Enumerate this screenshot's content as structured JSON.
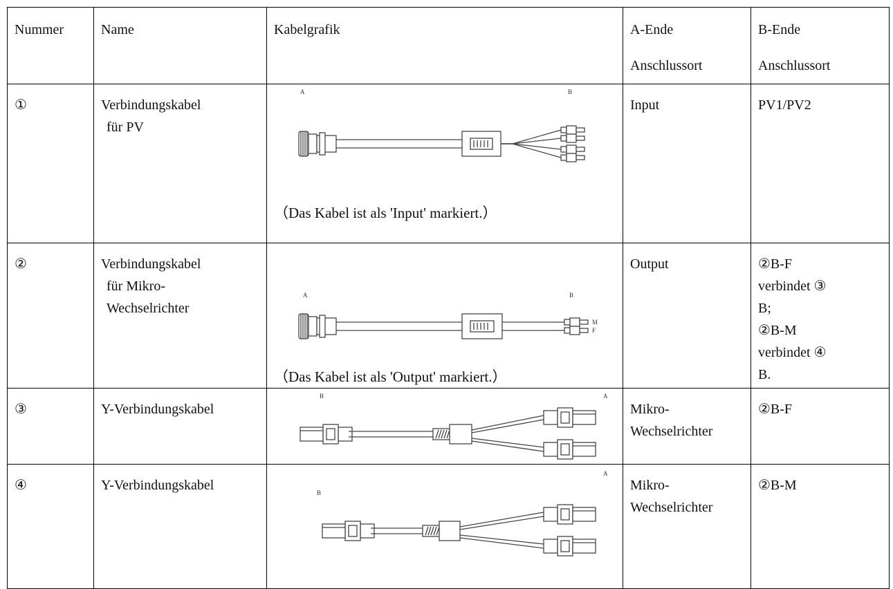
{
  "table": {
    "header": [
      [
        "Nummer"
      ],
      [
        "Name"
      ],
      [
        "Kabelgrafik"
      ],
      [
        "A-Ende",
        "Anschlussort"
      ],
      [
        "B-Ende",
        "Anschlussort"
      ]
    ],
    "rows": [
      {
        "number": "①",
        "name": [
          "Verbindungskabel",
          "für PV"
        ],
        "graphic": {
          "labels": [
            "A",
            "B"
          ],
          "caption": "（Das Kabel ist als 'Input' markiert.）"
        },
        "a_end": [
          "Input"
        ],
        "b_end": [
          "PV1/PV2"
        ]
      },
      {
        "number": "②",
        "name": [
          "Verbindungskabel",
          "für Mikro-",
          "Wechselrichter"
        ],
        "graphic": {
          "labels": [
            "A",
            "B",
            "M",
            "F"
          ],
          "caption": "（Das Kabel ist als 'Output' markiert.）"
        },
        "a_end": [
          "Output"
        ],
        "b_end": [
          "②B-F",
          "verbindet ③",
          "B;",
          "②B-M",
          "verbindet ④",
          "B."
        ]
      },
      {
        "number": "③",
        "name": [
          "Y-Verbindungskabel"
        ],
        "graphic": {
          "labels": [
            "B",
            "A"
          ]
        },
        "a_end": [
          "Mikro-",
          "Wechselrichter"
        ],
        "b_end": [
          "②B-F"
        ]
      },
      {
        "number": "④",
        "name": [
          "Y-Verbindungskabel"
        ],
        "graphic": {
          "labels": [
            "B",
            "A"
          ]
        },
        "a_end": [
          "Mikro-",
          "Wechselrichter"
        ],
        "b_end": [
          "②B-M"
        ]
      }
    ]
  }
}
